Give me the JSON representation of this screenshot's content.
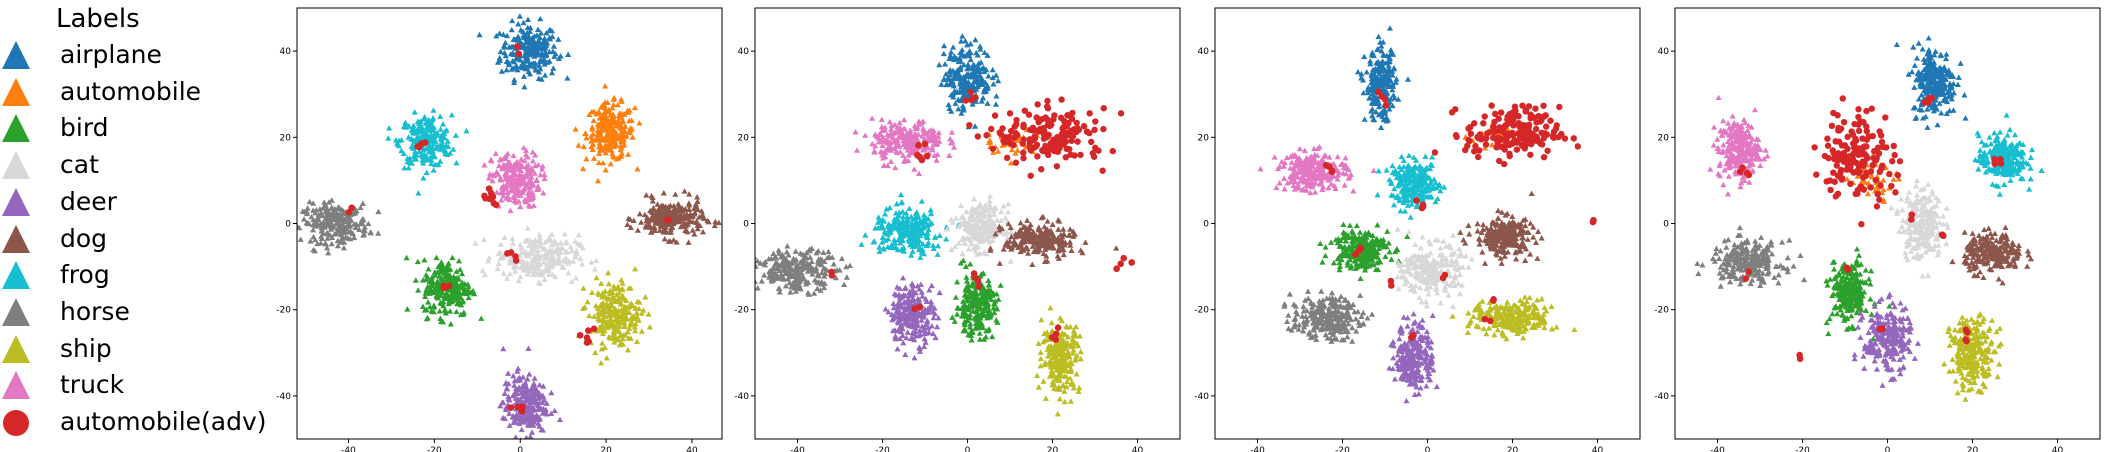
{
  "legend": {
    "title": "Labels",
    "items": [
      {
        "label": "airplane",
        "color": "#1f77b4",
        "marker": "triangle"
      },
      {
        "label": "automobile",
        "color": "#ff7f0e",
        "marker": "triangle"
      },
      {
        "label": "bird",
        "color": "#2ca02c",
        "marker": "triangle"
      },
      {
        "label": "cat",
        "color": "#d8d8d8",
        "marker": "triangle"
      },
      {
        "label": "deer",
        "color": "#9467bd",
        "marker": "triangle"
      },
      {
        "label": "dog",
        "color": "#8c564b",
        "marker": "triangle"
      },
      {
        "label": "frog",
        "color": "#17becf",
        "marker": "triangle"
      },
      {
        "label": "horse",
        "color": "#7f7f7f",
        "marker": "triangle"
      },
      {
        "label": "ship",
        "color": "#bcbd22",
        "marker": "triangle"
      },
      {
        "label": "truck",
        "color": "#e377c2",
        "marker": "triangle"
      },
      {
        "label": "automobile(adv)",
        "color": "#d62728",
        "marker": "circle"
      }
    ]
  },
  "chart_data": [
    {
      "type": "scatter",
      "xlim": [
        -52,
        47
      ],
      "ylim": [
        -50,
        50
      ],
      "xticks": [
        -40,
        -20,
        0,
        20,
        40
      ],
      "yticks": [
        -40,
        -20,
        0,
        20,
        40
      ],
      "clusters": [
        {
          "label": "airplane",
          "x": 2,
          "y": 40,
          "sx": 3.3,
          "sy": 3.2
        },
        {
          "label": "automobile",
          "x": 21,
          "y": 21,
          "sx": 2.8,
          "sy": 3.3
        },
        {
          "label": "frog",
          "x": -22,
          "y": 19,
          "sx": 3.0,
          "sy": 3.0
        },
        {
          "label": "truck",
          "x": -1,
          "y": 10,
          "sx": 2.8,
          "sy": 3.2
        },
        {
          "label": "horse",
          "x": -43,
          "y": 0,
          "sx": 3.8,
          "sy": 2.2
        },
        {
          "label": "dog",
          "x": 35,
          "y": 1,
          "sx": 3.8,
          "sy": 2.2
        },
        {
          "label": "cat",
          "x": 4,
          "y": -8,
          "sx": 4.8,
          "sy": 2.6
        },
        {
          "label": "bird",
          "x": -17,
          "y": -15,
          "sx": 2.8,
          "sy": 3.3
        },
        {
          "label": "ship",
          "x": 22,
          "y": -21,
          "sx": 3.0,
          "sy": 3.8
        },
        {
          "label": "deer",
          "x": 1,
          "y": -42,
          "sx": 2.5,
          "sy": 3.6
        }
      ],
      "adv_points": [
        [
          0,
          40
        ],
        [
          -24,
          17
        ],
        [
          -23,
          18
        ],
        [
          -8,
          6
        ],
        [
          -7,
          5
        ],
        [
          -6,
          4
        ],
        [
          -7,
          7
        ],
        [
          -40,
          3
        ],
        [
          -1,
          -8
        ],
        [
          -2,
          -7
        ],
        [
          -17,
          -15
        ],
        [
          -18,
          -14
        ],
        [
          15,
          -26
        ],
        [
          16,
          -27
        ],
        [
          17,
          -25
        ],
        [
          0,
          -43
        ],
        [
          -1,
          -44
        ],
        [
          35,
          1
        ]
      ]
    },
    {
      "type": "scatter",
      "xlim": [
        -50,
        50
      ],
      "ylim": [
        -50,
        50
      ],
      "xticks": [
        -40,
        -20,
        0,
        20,
        40
      ],
      "yticks": [
        -40,
        -20,
        0,
        20,
        40
      ],
      "clusters": [
        {
          "label": "airplane",
          "x": 0,
          "y": 34,
          "sx": 2.8,
          "sy": 3.8
        },
        {
          "label": "truck",
          "x": -14,
          "y": 19,
          "sx": 4.2,
          "sy": 2.4
        },
        {
          "label": "frog",
          "x": -14,
          "y": -2,
          "sx": 4.0,
          "sy": 2.6
        },
        {
          "label": "cat",
          "x": 3,
          "y": -1,
          "sx": 2.8,
          "sy": 2.6
        },
        {
          "label": "dog",
          "x": 17,
          "y": -4,
          "sx": 4.2,
          "sy": 2.0
        },
        {
          "label": "horse",
          "x": -40,
          "y": -11,
          "sx": 4.8,
          "sy": 2.3
        },
        {
          "label": "deer",
          "x": -13,
          "y": -21,
          "sx": 2.6,
          "sy": 3.5
        },
        {
          "label": "bird",
          "x": 2,
          "y": -19,
          "sx": 2.4,
          "sy": 3.4
        },
        {
          "label": "ship",
          "x": 22,
          "y": -31,
          "sx": 2.2,
          "sy": 4.0
        },
        {
          "label": "automobile",
          "x": 10,
          "y": 19,
          "sx": 3.0,
          "sy": 1.5
        }
      ],
      "adv_cluster": {
        "x": 20,
        "y": 20,
        "sx": 6.5,
        "sy": 3.2,
        "n": 160
      },
      "adv_points": [
        [
          0,
          29
        ],
        [
          1,
          30
        ],
        [
          -12,
          16
        ],
        [
          -10,
          15
        ],
        [
          -11,
          18
        ],
        [
          2,
          -12
        ],
        [
          3,
          -14
        ],
        [
          -32,
          -11
        ],
        [
          -12,
          -19
        ],
        [
          20,
          -26
        ],
        [
          21,
          -25
        ],
        [
          36,
          -10
        ],
        [
          37,
          -9
        ]
      ]
    },
    {
      "type": "scatter",
      "xlim": [
        -50,
        50
      ],
      "ylim": [
        -50,
        50
      ],
      "xticks": [
        -40,
        -20,
        0,
        20,
        40
      ],
      "yticks": [
        -40,
        -20,
        0,
        20,
        40
      ],
      "clusters": [
        {
          "label": "airplane",
          "x": -11,
          "y": 32,
          "sx": 1.8,
          "sy": 4.0
        },
        {
          "label": "truck",
          "x": -27,
          "y": 12,
          "sx": 4.0,
          "sy": 2.2
        },
        {
          "label": "frog",
          "x": -3,
          "y": 9,
          "sx": 2.8,
          "sy": 2.6
        },
        {
          "label": "bird",
          "x": -16,
          "y": -6,
          "sx": 3.4,
          "sy": 2.4
        },
        {
          "label": "cat",
          "x": 1,
          "y": -11,
          "sx": 3.4,
          "sy": 3.0
        },
        {
          "label": "dog",
          "x": 18,
          "y": -3,
          "sx": 3.4,
          "sy": 2.3
        },
        {
          "label": "horse",
          "x": -24,
          "y": -22,
          "sx": 4.0,
          "sy": 2.4
        },
        {
          "label": "deer",
          "x": -3,
          "y": -31,
          "sx": 2.2,
          "sy": 4.0
        },
        {
          "label": "ship",
          "x": 20,
          "y": -22,
          "sx": 4.8,
          "sy": 2.0
        },
        {
          "label": "automobile",
          "x": 16,
          "y": 20,
          "sx": 3.0,
          "sy": 1.5
        }
      ],
      "adv_cluster": {
        "x": 20,
        "y": 21,
        "sx": 5.5,
        "sy": 3.0,
        "n": 170
      },
      "adv_points": [
        [
          -11,
          30
        ],
        [
          -10,
          28
        ],
        [
          -24,
          13
        ],
        [
          -22,
          12
        ],
        [
          -1,
          5
        ],
        [
          0,
          4
        ],
        [
          -16,
          -7
        ],
        [
          -15,
          -6
        ],
        [
          4,
          -12
        ],
        [
          -8,
          -14
        ],
        [
          -4,
          -26
        ],
        [
          14,
          -22
        ],
        [
          15,
          -18
        ],
        [
          39,
          0
        ]
      ]
    },
    {
      "type": "scatter",
      "xlim": [
        -50,
        50
      ],
      "ylim": [
        -50,
        50
      ],
      "xticks": [
        -40,
        -20,
        0,
        20,
        40
      ],
      "yticks": [
        -40,
        -20,
        0,
        20,
        40
      ],
      "clusters": [
        {
          "label": "airplane",
          "x": 11,
          "y": 33,
          "sx": 2.6,
          "sy": 4.0
        },
        {
          "label": "truck",
          "x": -35,
          "y": 17,
          "sx": 2.4,
          "sy": 3.4
        },
        {
          "label": "frog",
          "x": 27,
          "y": 15,
          "sx": 2.8,
          "sy": 2.8
        },
        {
          "label": "cat",
          "x": 8,
          "y": 0,
          "sx": 2.4,
          "sy": 4.0
        },
        {
          "label": "dog",
          "x": 25,
          "y": -7,
          "sx": 3.4,
          "sy": 2.2
        },
        {
          "label": "horse",
          "x": -33,
          "y": -9,
          "sx": 4.2,
          "sy": 2.4
        },
        {
          "label": "bird",
          "x": -9,
          "y": -16,
          "sx": 2.2,
          "sy": 3.6
        },
        {
          "label": "deer",
          "x": 0,
          "y": -27,
          "sx": 2.8,
          "sy": 3.8
        },
        {
          "label": "ship",
          "x": 20,
          "y": -30,
          "sx": 2.6,
          "sy": 4.0
        },
        {
          "label": "automobile",
          "x": -3,
          "y": 10,
          "sx": 3.0,
          "sy": 2.0
        }
      ],
      "adv_cluster": {
        "x": -7,
        "y": 16,
        "sx": 4.2,
        "sy": 5.5,
        "n": 150
      },
      "adv_points": [
        [
          9,
          28
        ],
        [
          10,
          29
        ],
        [
          -34,
          13
        ],
        [
          -33,
          12
        ],
        [
          26,
          15
        ],
        [
          25,
          14
        ],
        [
          5,
          2
        ],
        [
          12,
          -3
        ],
        [
          -33,
          -12
        ],
        [
          -9,
          -11
        ],
        [
          -2,
          -24
        ],
        [
          18,
          -26
        ],
        [
          19,
          -25
        ],
        [
          -21,
          -31
        ]
      ]
    }
  ]
}
